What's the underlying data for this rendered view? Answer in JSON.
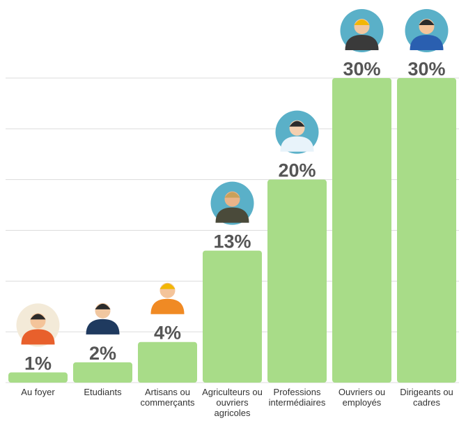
{
  "chart_data": {
    "type": "bar",
    "categories": [
      "Au foyer",
      "Etudiants",
      "Artisans ou commerçants",
      "Agriculteurs ou ouvriers agricoles",
      "Professions intermédiaires",
      "Ouvriers ou employés",
      "Dirigeants ou cadres"
    ],
    "values": [
      1,
      2,
      4,
      13,
      20,
      30,
      30
    ],
    "value_labels": [
      "1%",
      "2%",
      "4%",
      "13%",
      "20%",
      "30%",
      "30%"
    ],
    "color": "#a8dc88",
    "ylim": [
      0,
      30
    ],
    "yticks": [
      0,
      5,
      10,
      15,
      20,
      25,
      30
    ],
    "grid": true
  }
}
